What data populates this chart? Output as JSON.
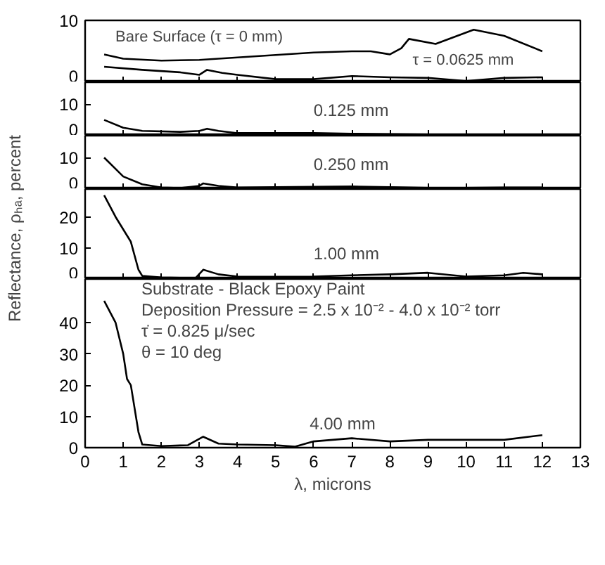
{
  "chart_data": [
    {
      "type": "line",
      "xlim": [
        0,
        13
      ],
      "xticks": [
        0,
        1,
        2,
        3,
        4,
        5,
        6,
        7,
        8,
        9,
        10,
        11,
        12,
        13
      ],
      "ylim": [
        0,
        10
      ],
      "yticks": [
        0,
        10
      ],
      "tick_labels": "y",
      "series": [
        {
          "color": "#000000",
          "x": [
            0.5,
            1,
            2,
            3,
            4,
            5,
            6,
            7,
            7.5,
            8,
            8.3,
            8.5,
            9.2,
            10.2,
            11,
            12
          ],
          "values": [
            4.5,
            3.8,
            3.5,
            3.6,
            4,
            4.4,
            4.8,
            5,
            5,
            4.5,
            5.5,
            7,
            6.2,
            8.5,
            7.5,
            5
          ]
        },
        {
          "color": "#000000",
          "x": [
            0.5,
            1.5,
            2.5,
            3,
            3.2,
            3.6,
            4,
            5,
            6,
            7,
            8,
            9,
            10,
            11,
            12
          ],
          "values": [
            2.5,
            2,
            1.6,
            1.2,
            2,
            1.5,
            1.2,
            0.5,
            0.5,
            1,
            0.8,
            0.7,
            0.2,
            0.7,
            0.8
          ]
        }
      ],
      "annotations": [
        {
          "text": "Bare Surface (τ = 0 mm)",
          "x": 0.5,
          "y": 4.5
        },
        {
          "text": "τ = 0.0625 mm",
          "x": 8.3,
          "y": 0.8
        }
      ]
    },
    {
      "type": "line",
      "xlim": [
        0,
        13
      ],
      "xticks": [
        0,
        1,
        2,
        3,
        4,
        5,
        6,
        7,
        8,
        9,
        10,
        11,
        12,
        13
      ],
      "ylim": [
        0,
        17
      ],
      "yticks": [
        0,
        10
      ],
      "tick_labels": "y",
      "series": [
        {
          "color": "#000000",
          "x": [
            0.5,
            1,
            1.5,
            2.5,
            3,
            3.2,
            3.5,
            4,
            5,
            6,
            7,
            8,
            9,
            10,
            11,
            12
          ],
          "values": [
            5,
            2.5,
            1.5,
            1.2,
            1.5,
            2.2,
            1.5,
            0.8,
            0.8,
            0.8,
            0.6,
            0.5,
            0.4,
            0.3,
            0.3,
            0.2
          ]
        }
      ],
      "annotations": [
        {
          "text": "0.125 mm",
          "x": 5.7,
          "y": 0.8
        }
      ]
    },
    {
      "type": "line",
      "xlim": [
        0,
        13
      ],
      "xticks": [
        0,
        1,
        2,
        3,
        4,
        5,
        6,
        7,
        8,
        9,
        10,
        11,
        12,
        13
      ],
      "ylim": [
        0,
        17
      ],
      "yticks": [
        0,
        10
      ],
      "tick_labels": "y",
      "ylabel": "Reflectance, ρₕₐ, percent",
      "series": [
        {
          "color": "#000000",
          "x": [
            0.5,
            1,
            1.5,
            2,
            2.5,
            3,
            3.1,
            3.5,
            4,
            5,
            6,
            7,
            8,
            9,
            10,
            11,
            12
          ],
          "values": [
            10,
            4,
            1.5,
            0.5,
            0.3,
            1,
            1.8,
            1,
            0.5,
            0.6,
            0.7,
            0.8,
            0.6,
            0.4,
            0.4,
            0.5,
            0.5
          ]
        }
      ],
      "annotations": [
        {
          "text": "0.250 mm",
          "x": 5.7,
          "y": 0.7
        }
      ]
    },
    {
      "type": "line",
      "xlim": [
        0,
        13
      ],
      "xticks": [
        0,
        1,
        2,
        3,
        4,
        5,
        6,
        7,
        8,
        9,
        10,
        11,
        12,
        13
      ],
      "ylim": [
        0,
        29
      ],
      "yticks": [
        0,
        10,
        20
      ],
      "tick_labels": "y",
      "series": [
        {
          "color": "#000000",
          "x": [
            0.5,
            0.8,
            1.2,
            1.4,
            1.5,
            2,
            2.9,
            3.1,
            3.5,
            4,
            5,
            6,
            7,
            8,
            9,
            10,
            11,
            11.5,
            12
          ],
          "values": [
            27,
            20,
            12,
            3,
            1,
            0.5,
            0.3,
            3,
            1.5,
            0.8,
            0.7,
            0.8,
            1.2,
            1.5,
            2,
            0.8,
            1.2,
            2,
            1.5
          ]
        }
      ],
      "annotations": [
        {
          "text": "1.00 mm",
          "x": 5.7,
          "y": 0.8
        }
      ]
    },
    {
      "type": "line",
      "xlim": [
        0,
        13
      ],
      "xticks": [
        0,
        1,
        2,
        3,
        4,
        5,
        6,
        7,
        8,
        9,
        10,
        11,
        12,
        13
      ],
      "ylim": [
        0,
        54
      ],
      "yticks": [
        0,
        10,
        20,
        30,
        40
      ],
      "xlabel": "λ, microns",
      "series": [
        {
          "color": "#000000",
          "x": [
            0.5,
            0.8,
            1,
            1.1,
            1.2,
            1.4,
            1.5,
            2,
            2.7,
            3.1,
            3.5,
            4,
            5,
            5.5,
            6,
            7,
            8,
            9,
            10,
            11,
            12
          ],
          "values": [
            47,
            40,
            30,
            22,
            20,
            5,
            1,
            0.5,
            0.8,
            3.5,
            1.3,
            1,
            0.8,
            0.3,
            2,
            3,
            2,
            2.5,
            2.5,
            2.5,
            4
          ]
        }
      ],
      "annotations": [
        {
          "text": "4.00 mm",
          "x": 5.6,
          "y": 0.5
        },
        "Substrate - Black Epoxy Paint",
        "Deposition Pressure = 2.5 x 10⁻² - 4.0 x 10⁻² torr",
        "τ̇ = 0.825 μ/sec",
        "θ = 10 deg"
      ]
    }
  ]
}
